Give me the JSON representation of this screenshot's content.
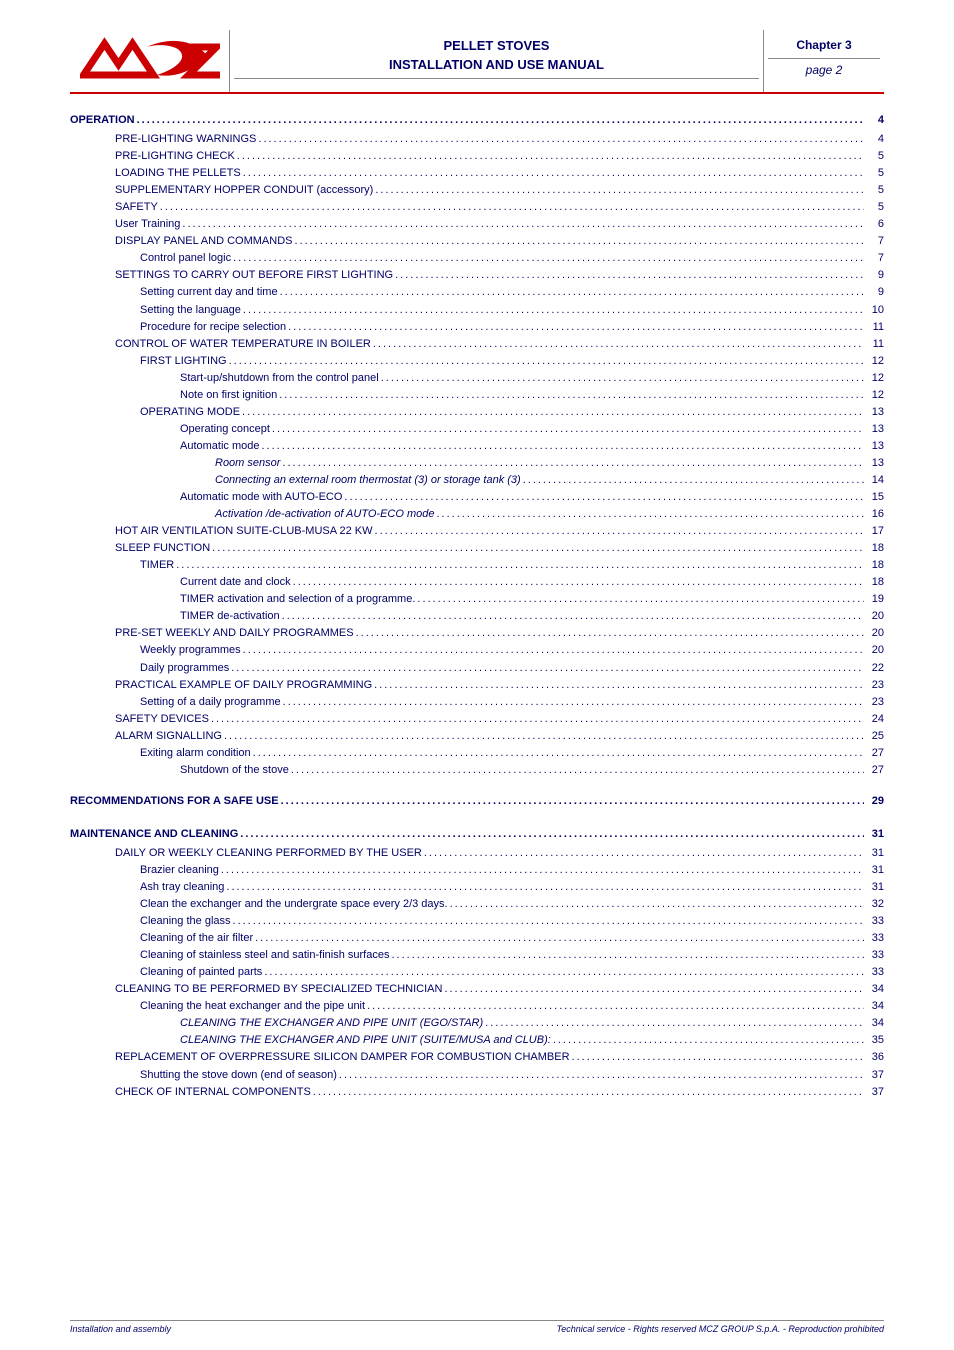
{
  "header": {
    "title1": "PELLET STOVES",
    "title2": "INSTALLATION AND USE MANUAL",
    "chapter": "Chapter 3",
    "page": "page 2"
  },
  "footer": {
    "left": "Installation and assembly",
    "right": "Technical service - Rights reserved MCZ GROUP S.p.A. - Reproduction prohibited"
  },
  "colors": {
    "brand_red": "#cc0000",
    "text_navy": "#000066",
    "rule_grey": "#888888",
    "bg": "#ffffff"
  },
  "toc": [
    {
      "level": 0,
      "bold": true,
      "label": "OPERATION ",
      "page": "4"
    },
    {
      "level": 1,
      "label": "PRE-LIGHTING WARNINGS",
      "page": "4"
    },
    {
      "level": 1,
      "label": "PRE-LIGHTING CHECK ",
      "page": "5"
    },
    {
      "level": 1,
      "label": "LOADING THE PELLETS",
      "page": "5"
    },
    {
      "level": 1,
      "label": "SUPPLEMENTARY HOPPER CONDUIT (accessory) ",
      "page": "5"
    },
    {
      "level": 1,
      "label": "SAFETY ",
      "page": "5"
    },
    {
      "level": 1,
      "label": "User Training",
      "page": "6"
    },
    {
      "level": 1,
      "label": "DISPLAY PANEL AND COMMANDS",
      "page": "7"
    },
    {
      "level": 2,
      "label": "Control panel logic ",
      "page": "7"
    },
    {
      "level": 1,
      "label": "SETTINGS TO CARRY OUT BEFORE FIRST LIGHTING",
      "page": "9"
    },
    {
      "level": 2,
      "label": "Setting current day and time",
      "page": "9"
    },
    {
      "level": 2,
      "label": "Setting the language ",
      "page": "10"
    },
    {
      "level": 2,
      "label": "Procedure for recipe selection ",
      "page": "11"
    },
    {
      "level": 1,
      "label": "CONTROL OF WATER TEMPERATURE IN BOILER ",
      "page": "11"
    },
    {
      "level": 2,
      "label": "FIRST LIGHTING ",
      "page": "12"
    },
    {
      "level": 3,
      "label": "Start-up/shutdown from the control panel ",
      "page": "12"
    },
    {
      "level": 3,
      "label": "Note on first ignition ",
      "page": "12"
    },
    {
      "level": 2,
      "label": "OPERATING MODE ",
      "page": "13"
    },
    {
      "level": 3,
      "label": "Operating concept ",
      "page": "13"
    },
    {
      "level": 3,
      "label": "Automatic mode ",
      "page": "13"
    },
    {
      "level": 4,
      "italic": true,
      "label": "Room sensor",
      "page": "13"
    },
    {
      "level": 4,
      "italic": true,
      "label": "Connecting an external room thermostat (3) or storage tank (3) ",
      "page": "14"
    },
    {
      "level": 3,
      "label": "Automatic mode with AUTO-ECO ",
      "page": "15"
    },
    {
      "level": 4,
      "italic": true,
      "label": "Activation /de-activation of AUTO-ECO mode ",
      "page": "16"
    },
    {
      "level": 1,
      "label": "HOT AIR VENTILATION SUITE-CLUB-MUSA 22 KW ",
      "page": "17"
    },
    {
      "level": 1,
      "label": "SLEEP FUNCTION ",
      "page": "18"
    },
    {
      "level": 2,
      "label": "TIMER ",
      "page": "18"
    },
    {
      "level": 3,
      "label": "Current date and clock ",
      "page": "18"
    },
    {
      "level": 3,
      "label": "TIMER activation and selection of a programme. ",
      "page": "19"
    },
    {
      "level": 3,
      "label": "TIMER de-activation",
      "page": "20"
    },
    {
      "level": 1,
      "label": "PRE-SET WEEKLY AND DAILY PROGRAMMES ",
      "page": "20"
    },
    {
      "level": 2,
      "label": "Weekly programmes ",
      "page": "20"
    },
    {
      "level": 2,
      "label": "Daily programmes",
      "page": "22"
    },
    {
      "level": 1,
      "label": "PRACTICAL EXAMPLE OF DAILY PROGRAMMING ",
      "page": "23"
    },
    {
      "level": 2,
      "label": "Setting of a daily programme ",
      "page": "23"
    },
    {
      "level": 1,
      "label": "SAFETY DEVICES",
      "page": "24"
    },
    {
      "level": 1,
      "label": "ALARM SIGNALLING ",
      "page": "25"
    },
    {
      "level": 2,
      "label": "Exiting alarm condition ",
      "page": "27"
    },
    {
      "level": 3,
      "label": "Shutdown of the stove ",
      "page": "27"
    },
    {
      "gap": true
    },
    {
      "level": 0,
      "bold": true,
      "label": "RECOMMENDATIONS FOR A SAFE USE ",
      "page": "29"
    },
    {
      "gap": true
    },
    {
      "level": 0,
      "bold": true,
      "label": "MAINTENANCE AND CLEANING",
      "page": "31"
    },
    {
      "level": 1,
      "label": "DAILY OR WEEKLY CLEANING PERFORMED BY THE USER ",
      "page": "31"
    },
    {
      "level": 2,
      "label": "Brazier cleaning ",
      "page": "31"
    },
    {
      "level": 2,
      "label": "Ash tray cleaning ",
      "page": "31"
    },
    {
      "level": 2,
      "label": "Clean the exchanger and the undergrate space every 2/3 days. ",
      "page": "32"
    },
    {
      "level": 2,
      "label": "Cleaning the glass ",
      "page": "33"
    },
    {
      "level": 2,
      "label": "Cleaning of the air filter ",
      "page": "33"
    },
    {
      "level": 2,
      "label": "Cleaning of stainless steel and satin-finish surfaces ",
      "page": "33"
    },
    {
      "level": 2,
      "label": "Cleaning of painted parts",
      "page": "33"
    },
    {
      "level": 1,
      "label": "CLEANING TO BE PERFORMED BY SPECIALIZED TECHNICIAN ",
      "page": "34"
    },
    {
      "level": 2,
      "label": "Cleaning the heat exchanger and the pipe unit ",
      "page": "34"
    },
    {
      "level": 3,
      "italic": true,
      "label": "CLEANING THE EXCHANGER AND PIPE UNIT (EGO/STAR)",
      "page": "34"
    },
    {
      "level": 3,
      "italic": true,
      "label": "CLEANING THE EXCHANGER AND PIPE UNIT (SUITE/MUSA and CLUB): ",
      "page": "35"
    },
    {
      "level": 1,
      "label": "REPLACEMENT OF OVERPRESSURE SILICON DAMPER FOR COMBUSTION CHAMBER ",
      "page": "36"
    },
    {
      "level": 2,
      "label": "Shutting the stove down (end of season)",
      "page": "37"
    },
    {
      "level": 1,
      "label": "CHECK OF INTERNAL COMPONENTS",
      "page": "37"
    }
  ]
}
